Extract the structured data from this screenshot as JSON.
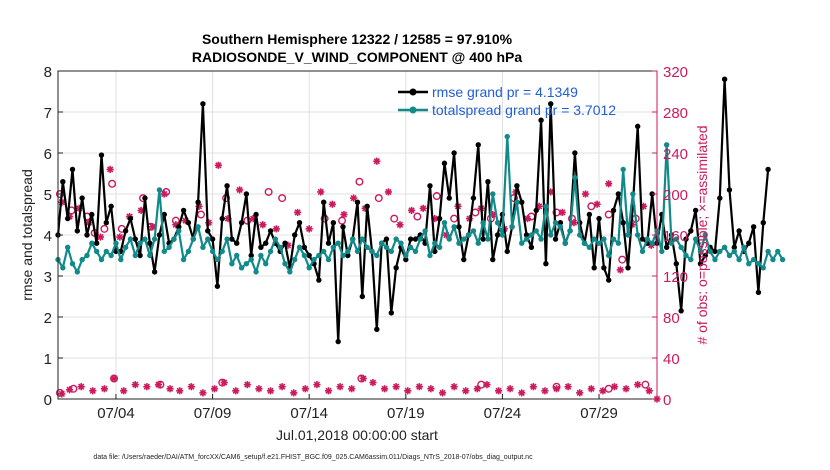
{
  "chart_data": {
    "type": "line",
    "title_line1": "Southern Hemisphere 12322 / 12585 = 97.910%",
    "title_line2": "RADIOSONDE_V_WIND_COMPONENT @ 400 hPa",
    "xlabel": "Jul.01,2018 00:00:00 start",
    "ylabel_left": "rmse and totalspread",
    "ylabel_right": "# of obs: o=possible; ×=assimilated",
    "footnote": "data file: /Users/raeder/DAI/ATM_forcXX/CAM6_setup/f.e21.FHIST_BGC.f09_025.CAM6assim.011/Diags_NTrS_2018-07/obs_diag_output.nc",
    "x_ticks": [
      {
        "label": "07/04",
        "day": 4
      },
      {
        "label": "07/09",
        "day": 9
      },
      {
        "label": "07/14",
        "day": 14
      },
      {
        "label": "07/19",
        "day": 19
      },
      {
        "label": "07/24",
        "day": 24
      },
      {
        "label": "07/29",
        "day": 29
      }
    ],
    "xlim": [
      1,
      32
    ],
    "ylim_left": [
      0,
      8
    ],
    "ylim_right": [
      0,
      320
    ],
    "left_ticks": [
      0,
      1,
      2,
      3,
      4,
      5,
      6,
      7,
      8
    ],
    "right_ticks": [
      0,
      40,
      80,
      120,
      160,
      200,
      240,
      280,
      320
    ],
    "grid": true,
    "legend_position": "top-right",
    "colors": {
      "rmse": "#000000",
      "totalspread": "#138a8a",
      "obs": "#cc1a5e",
      "legend_text": "#1f5fd6",
      "grid": "#e0e0e0"
    },
    "series": [
      {
        "name": "rmse grand pr = 4.1349",
        "key": "rmse",
        "step_days": 0.25,
        "values": [
          4.0,
          5.3,
          4.4,
          5.6,
          4.1,
          4.9,
          4.0,
          4.5,
          3.8,
          5.95,
          4.3,
          4.7,
          3.6,
          3.6,
          4.1,
          4.4,
          3.9,
          3.5,
          4.9,
          3.8,
          3.1,
          4.0,
          4.5,
          3.8,
          3.9,
          4.2,
          4.6,
          4.3,
          3.9,
          4.8,
          7.2,
          4.1,
          3.9,
          2.75,
          4.4,
          5.2,
          3.9,
          3.8,
          4.3,
          5.0,
          3.5,
          4.5,
          3.7,
          3.8,
          4.1,
          3.8,
          3.6,
          3.8,
          3.2,
          4.0,
          4.3,
          3.7,
          3.5,
          3.3,
          2.9,
          4.8,
          3.8,
          4.3,
          1.4,
          4.2,
          3.5,
          3.9,
          4.8,
          2.5,
          4.7,
          3.6,
          1.7,
          3.8,
          3.9,
          2.1,
          3.2,
          3.7,
          3.4,
          3.9,
          3.9,
          4.0,
          3.8,
          5.2,
          3.6,
          4.4,
          5.75,
          4.9,
          6.0,
          4.2,
          3.4,
          4.0,
          4.9,
          6.2,
          3.9,
          5.3,
          3.4,
          4.0,
          4.5,
          3.6,
          4.2,
          5.2,
          4.8,
          4.0,
          3.7,
          4.6,
          6.8,
          3.3,
          7.2,
          3.9,
          4.3,
          3.8,
          4.1,
          6.0,
          4.3,
          3.8,
          4.5,
          3.2,
          4.4,
          3.2,
          2.9,
          4.6,
          5.0,
          4.3,
          3.2,
          4.7,
          6.65,
          3.9,
          3.8,
          5.0,
          3.8,
          4.5,
          3.7,
          4.0,
          3.3,
          2.15,
          3.9,
          4.1,
          4.6,
          3.3,
          3.5,
          3.7,
          3.6,
          4.9,
          7.8,
          5.1,
          3.7,
          4.1,
          3.6,
          3.8,
          4.2,
          2.6,
          4.3,
          5.6
        ]
      },
      {
        "name": "totalspread grand pr = 3.7012",
        "key": "totalspread",
        "step_days": 0.25,
        "values": [
          3.4,
          3.2,
          3.7,
          3.3,
          3.1,
          3.4,
          3.5,
          3.8,
          3.6,
          3.4,
          3.6,
          3.5,
          3.8,
          3.4,
          3.7,
          3.9,
          3.5,
          3.8,
          3.9,
          3.5,
          3.9,
          5.1,
          3.6,
          3.7,
          3.9,
          4.1,
          3.4,
          3.6,
          3.9,
          4.2,
          3.7,
          3.9,
          3.6,
          3.4,
          3.6,
          3.9,
          3.3,
          3.5,
          3.2,
          3.3,
          3.4,
          3.1,
          3.5,
          3.3,
          3.6,
          3.9,
          3.7,
          3.3,
          3.1,
          3.4,
          3.7,
          3.5,
          3.2,
          3.4,
          3.5,
          3.6,
          3.4,
          3.7,
          3.8,
          3.5,
          3.6,
          3.9,
          3.6,
          3.9,
          3.7,
          3.6,
          3.5,
          3.8,
          3.7,
          3.6,
          3.9,
          3.8,
          3.5,
          3.7,
          3.6,
          3.9,
          4.1,
          3.5,
          3.8,
          3.7,
          4.3,
          3.9,
          4.2,
          3.8,
          3.9,
          4.0,
          4.1,
          3.8,
          4.3,
          3.9,
          5.0,
          4.3,
          4.0,
          6.4,
          4.2,
          4.8,
          3.8,
          3.9,
          4.0,
          4.1,
          3.9,
          4.7,
          4.0,
          4.3,
          4.2,
          3.8,
          4.1,
          5.4,
          4.0,
          3.8,
          3.7,
          3.9,
          3.8,
          3.9,
          3.5,
          3.9,
          3.8,
          5.6,
          4.0,
          5.0,
          4.0,
          3.6,
          3.9,
          3.8,
          4.1,
          3.6,
          6.2,
          3.8,
          3.9,
          3.7,
          3.5,
          3.4,
          3.9,
          3.6,
          4.0,
          3.6,
          3.4,
          3.6,
          3.7,
          3.5,
          3.6,
          3.4,
          3.7,
          3.3,
          3.4,
          3.3,
          3.2,
          3.6,
          3.4,
          3.6,
          3.4
        ]
      }
    ],
    "obs_possible_circles": [
      {
        "day": 1.1,
        "count": 200
      },
      {
        "day": 1.7,
        "count": 184
      },
      {
        "day": 2.5,
        "count": 178
      },
      {
        "day": 2.9,
        "count": 162
      },
      {
        "day": 3.4,
        "count": 166
      },
      {
        "day": 3.8,
        "count": 210
      },
      {
        "day": 4.3,
        "count": 166
      },
      {
        "day": 5.4,
        "count": 196
      },
      {
        "day": 5.8,
        "count": 168
      },
      {
        "day": 6.6,
        "count": 202
      },
      {
        "day": 7.1,
        "count": 174
      },
      {
        "day": 8.4,
        "count": 180
      },
      {
        "day": 9.7,
        "count": 196
      },
      {
        "day": 10.8,
        "count": 174
      },
      {
        "day": 11.9,
        "count": 202
      },
      {
        "day": 12.6,
        "count": 196
      },
      {
        "day": 14.8,
        "count": 176
      },
      {
        "day": 15.7,
        "count": 174
      },
      {
        "day": 16.6,
        "count": 212
      },
      {
        "day": 17.6,
        "count": 196
      },
      {
        "day": 18.4,
        "count": 176
      },
      {
        "day": 19.6,
        "count": 178
      },
      {
        "day": 20.6,
        "count": 198
      },
      {
        "day": 21.5,
        "count": 176
      },
      {
        "day": 22.6,
        "count": 182
      },
      {
        "day": 23.4,
        "count": 176
      },
      {
        "day": 24.6,
        "count": 196
      },
      {
        "day": 25.5,
        "count": 178
      },
      {
        "day": 26.8,
        "count": 182
      },
      {
        "day": 27.6,
        "count": 176
      },
      {
        "day": 28.6,
        "count": 188
      },
      {
        "day": 29.5,
        "count": 180
      },
      {
        "day": 30.2,
        "count": 136
      },
      {
        "day": 30.9,
        "count": 176
      }
    ],
    "obs_assimilated_stars": [
      {
        "day": 1.2,
        "count": 192
      },
      {
        "day": 1.6,
        "count": 178
      },
      {
        "day": 2.1,
        "count": 186
      },
      {
        "day": 2.6,
        "count": 172
      },
      {
        "day": 3.2,
        "count": 158
      },
      {
        "day": 3.7,
        "count": 224
      },
      {
        "day": 4.2,
        "count": 158
      },
      {
        "day": 4.7,
        "count": 178
      },
      {
        "day": 5.3,
        "count": 184
      },
      {
        "day": 5.9,
        "count": 168
      },
      {
        "day": 6.5,
        "count": 200
      },
      {
        "day": 7.1,
        "count": 170
      },
      {
        "day": 7.6,
        "count": 174
      },
      {
        "day": 8.3,
        "count": 188
      },
      {
        "day": 8.8,
        "count": 172
      },
      {
        "day": 9.3,
        "count": 228
      },
      {
        "day": 9.8,
        "count": 176
      },
      {
        "day": 10.4,
        "count": 204
      },
      {
        "day": 11.1,
        "count": 176
      },
      {
        "day": 11.6,
        "count": 170
      },
      {
        "day": 12.3,
        "count": 166
      },
      {
        "day": 12.9,
        "count": 150
      },
      {
        "day": 13.4,
        "count": 182
      },
      {
        "day": 14.0,
        "count": 166
      },
      {
        "day": 14.6,
        "count": 202
      },
      {
        "day": 15.2,
        "count": 190
      },
      {
        "day": 15.8,
        "count": 180
      },
      {
        "day": 16.3,
        "count": 196
      },
      {
        "day": 16.9,
        "count": 186
      },
      {
        "day": 17.5,
        "count": 232
      },
      {
        "day": 18.1,
        "count": 202
      },
      {
        "day": 18.7,
        "count": 170
      },
      {
        "day": 19.3,
        "count": 184
      },
      {
        "day": 19.9,
        "count": 186
      },
      {
        "day": 20.5,
        "count": 176
      },
      {
        "day": 21.1,
        "count": 160
      },
      {
        "day": 21.7,
        "count": 188
      },
      {
        "day": 22.3,
        "count": 176
      },
      {
        "day": 22.9,
        "count": 186
      },
      {
        "day": 23.5,
        "count": 180
      },
      {
        "day": 24.1,
        "count": 166
      },
      {
        "day": 24.7,
        "count": 202
      },
      {
        "day": 25.3,
        "count": 176
      },
      {
        "day": 25.9,
        "count": 188
      },
      {
        "day": 26.5,
        "count": 202
      },
      {
        "day": 27.1,
        "count": 182
      },
      {
        "day": 27.7,
        "count": 172
      },
      {
        "day": 28.3,
        "count": 200
      },
      {
        "day": 28.9,
        "count": 190
      },
      {
        "day": 29.5,
        "count": 210
      },
      {
        "day": 30.1,
        "count": 126
      },
      {
        "day": 30.7,
        "count": 170
      },
      {
        "day": 31.3,
        "count": 188
      },
      {
        "day": 31.7,
        "count": 150
      }
    ],
    "obs_possible_bottom": [
      {
        "day": 1.1,
        "count": 6
      },
      {
        "day": 1.8,
        "count": 10
      },
      {
        "day": 3.9,
        "count": 20
      },
      {
        "day": 6.3,
        "count": 14
      },
      {
        "day": 9.5,
        "count": 16
      },
      {
        "day": 16.7,
        "count": 20
      },
      {
        "day": 22.9,
        "count": 14
      },
      {
        "day": 26.8,
        "count": 12
      },
      {
        "day": 29.5,
        "count": 10
      },
      {
        "day": 31.4,
        "count": 14
      }
    ],
    "obs_assimilated_bottom": [
      {
        "day": 1.2,
        "count": 5
      },
      {
        "day": 1.6,
        "count": 9
      },
      {
        "day": 2.2,
        "count": 12
      },
      {
        "day": 2.8,
        "count": 8
      },
      {
        "day": 3.4,
        "count": 10
      },
      {
        "day": 3.9,
        "count": 20
      },
      {
        "day": 4.4,
        "count": 8
      },
      {
        "day": 5.0,
        "count": 14
      },
      {
        "day": 5.6,
        "count": 12
      },
      {
        "day": 6.2,
        "count": 14
      },
      {
        "day": 6.8,
        "count": 10
      },
      {
        "day": 7.3,
        "count": 8
      },
      {
        "day": 7.9,
        "count": 12
      },
      {
        "day": 8.5,
        "count": 6
      },
      {
        "day": 9.1,
        "count": 10
      },
      {
        "day": 9.6,
        "count": 16
      },
      {
        "day": 10.2,
        "count": 8
      },
      {
        "day": 10.8,
        "count": 14
      },
      {
        "day": 11.4,
        "count": 10
      },
      {
        "day": 12.0,
        "count": 8
      },
      {
        "day": 12.6,
        "count": 12
      },
      {
        "day": 13.2,
        "count": 6
      },
      {
        "day": 13.8,
        "count": 10
      },
      {
        "day": 14.4,
        "count": 14
      },
      {
        "day": 15.0,
        "count": 8
      },
      {
        "day": 15.6,
        "count": 12
      },
      {
        "day": 16.2,
        "count": 10
      },
      {
        "day": 16.8,
        "count": 20
      },
      {
        "day": 17.3,
        "count": 16
      },
      {
        "day": 17.9,
        "count": 10
      },
      {
        "day": 18.5,
        "count": 12
      },
      {
        "day": 19.1,
        "count": 8
      },
      {
        "day": 19.7,
        "count": 12
      },
      {
        "day": 20.3,
        "count": 10
      },
      {
        "day": 20.9,
        "count": 6
      },
      {
        "day": 21.5,
        "count": 12
      },
      {
        "day": 22.1,
        "count": 8
      },
      {
        "day": 22.7,
        "count": 10
      },
      {
        "day": 23.2,
        "count": 14
      },
      {
        "day": 23.8,
        "count": 8
      },
      {
        "day": 24.4,
        "count": 10
      },
      {
        "day": 25.0,
        "count": 6
      },
      {
        "day": 25.6,
        "count": 12
      },
      {
        "day": 26.2,
        "count": 8
      },
      {
        "day": 26.8,
        "count": 10
      },
      {
        "day": 27.4,
        "count": 12
      },
      {
        "day": 28.0,
        "count": 6
      },
      {
        "day": 28.6,
        "count": 10
      },
      {
        "day": 29.2,
        "count": 8
      },
      {
        "day": 29.8,
        "count": 12
      },
      {
        "day": 30.4,
        "count": 10
      },
      {
        "day": 31.0,
        "count": 14
      },
      {
        "day": 31.6,
        "count": 8
      },
      {
        "day": 32.0,
        "count": 0
      }
    ]
  }
}
